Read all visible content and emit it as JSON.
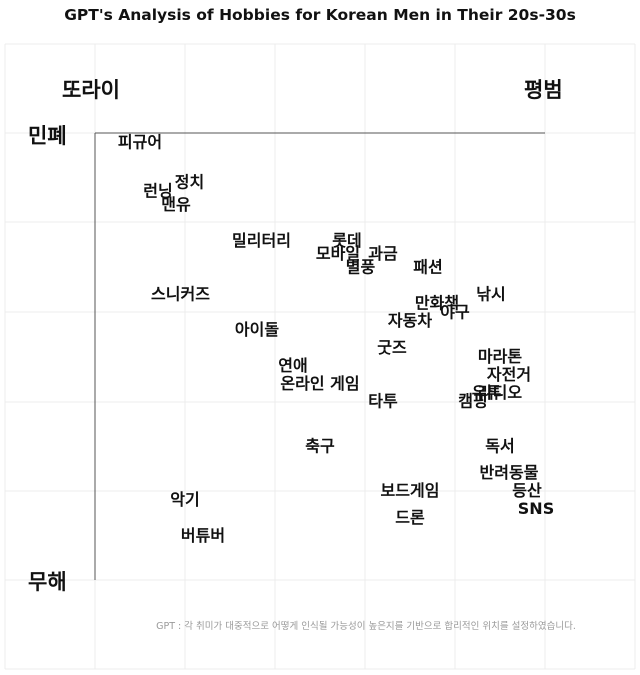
{
  "chart_data": {
    "type": "scatter",
    "title": "GPT's Analysis of Hobbies for Korean Men in Their 20s-30s",
    "x_axis": {
      "left_label": "또라이",
      "right_label": "평범"
    },
    "y_axis": {
      "top_label": "민폐",
      "bottom_label": "무해"
    },
    "xlim": [
      0,
      100
    ],
    "ylim": [
      0,
      100
    ],
    "grid": true,
    "points": [
      {
        "label": "피규어",
        "x": 10,
        "y": 98
      },
      {
        "label": "정치",
        "x": 21,
        "y": 89
      },
      {
        "label": "런닝",
        "x": 14,
        "y": 87
      },
      {
        "label": "맨유",
        "x": 18,
        "y": 84
      },
      {
        "label": "밀리터리",
        "x": 37,
        "y": 76
      },
      {
        "label": "롯데",
        "x": 56,
        "y": 76
      },
      {
        "label": "모바일",
        "x": 54,
        "y": 73
      },
      {
        "label": "과금",
        "x": 64,
        "y": 73
      },
      {
        "label": "패션",
        "x": 74,
        "y": 70
      },
      {
        "label": "별풍",
        "x": 59,
        "y": 70
      },
      {
        "label": "스니커즈",
        "x": 19,
        "y": 64
      },
      {
        "label": "낚시",
        "x": 88,
        "y": 64
      },
      {
        "label": "만화책",
        "x": 76,
        "y": 62
      },
      {
        "label": "야구",
        "x": 80,
        "y": 60
      },
      {
        "label": "자동차",
        "x": 70,
        "y": 58
      },
      {
        "label": "아이돌",
        "x": 36,
        "y": 56
      },
      {
        "label": "굿즈",
        "x": 66,
        "y": 52
      },
      {
        "label": "마라톤",
        "x": 90,
        "y": 50
      },
      {
        "label": "연애",
        "x": 44,
        "y": 48
      },
      {
        "label": "자전거",
        "x": 92,
        "y": 46
      },
      {
        "label": "온라인 게임",
        "x": 50,
        "y": 44
      },
      {
        "label": "유튜",
        "x": 87,
        "y": 42
      },
      {
        "label": "캠핑",
        "x": 84,
        "y": 40
      },
      {
        "label": "라디오",
        "x": 90,
        "y": 42
      },
      {
        "label": "타투",
        "x": 64,
        "y": 40
      },
      {
        "label": "축구",
        "x": 50,
        "y": 30
      },
      {
        "label": "독서",
        "x": 90,
        "y": 30
      },
      {
        "label": "반려동물",
        "x": 92,
        "y": 24
      },
      {
        "label": "등산",
        "x": 96,
        "y": 20
      },
      {
        "label": "보드게임",
        "x": 70,
        "y": 20
      },
      {
        "label": "SNS",
        "x": 98,
        "y": 16
      },
      {
        "label": "악기",
        "x": 20,
        "y": 18
      },
      {
        "label": "드론",
        "x": 70,
        "y": 14
      },
      {
        "label": "버튜버",
        "x": 24,
        "y": 10
      }
    ],
    "footnote": "GPT : 각 취미가 대중적으로 어떻게 인식될 가능성이 높은지를 기반으로 합리적인 위치를 설정하였습니다."
  }
}
